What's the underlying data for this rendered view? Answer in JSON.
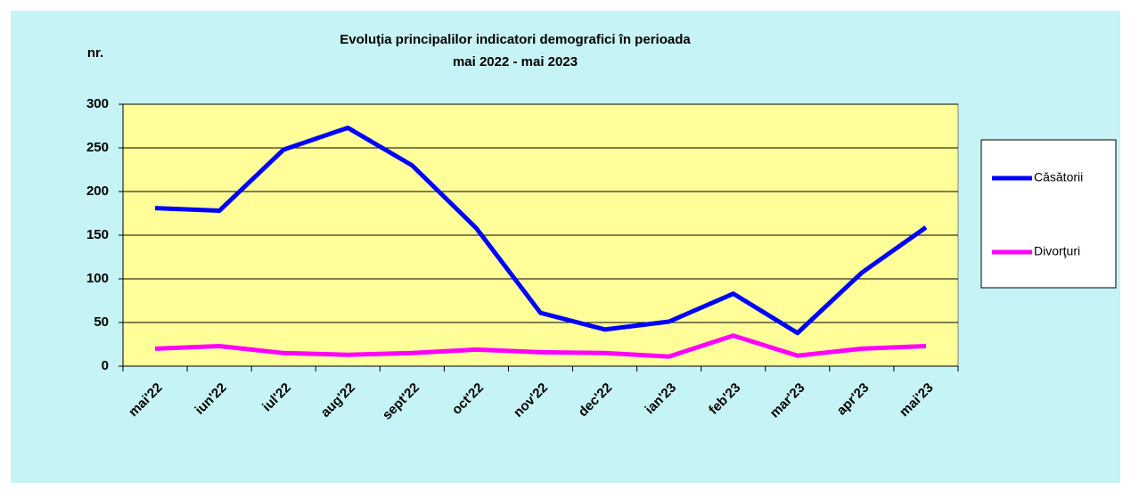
{
  "chart_data": {
    "type": "line",
    "title": [
      "Evoluţia principalilor  indicatori demografici în perioada",
      "mai 2022 - mai 2023"
    ],
    "y_label": "nr.",
    "categories": [
      "mai'22",
      "iun'22",
      "iul'22",
      "aug'22",
      "sept'22",
      "oct'22",
      "nov'22",
      "dec'22",
      "ian'23",
      "feb'23",
      "mar'23",
      "apr'23",
      "mai'23"
    ],
    "series": [
      {
        "name": "Căsătorii",
        "color": "#0000ff",
        "values": [
          181,
          178,
          248,
          273,
          230,
          158,
          61,
          42,
          51,
          83,
          38,
          107,
          159
        ]
      },
      {
        "name": "Divorţuri",
        "color": "#ff00ff",
        "values": [
          20,
          23,
          15,
          13,
          15,
          19,
          16,
          15,
          11,
          35,
          12,
          20,
          23
        ]
      }
    ],
    "ylim": [
      0,
      300
    ],
    "yticks": [
      0,
      50,
      100,
      150,
      200,
      250,
      300
    ],
    "grid": true,
    "legend": "right"
  }
}
